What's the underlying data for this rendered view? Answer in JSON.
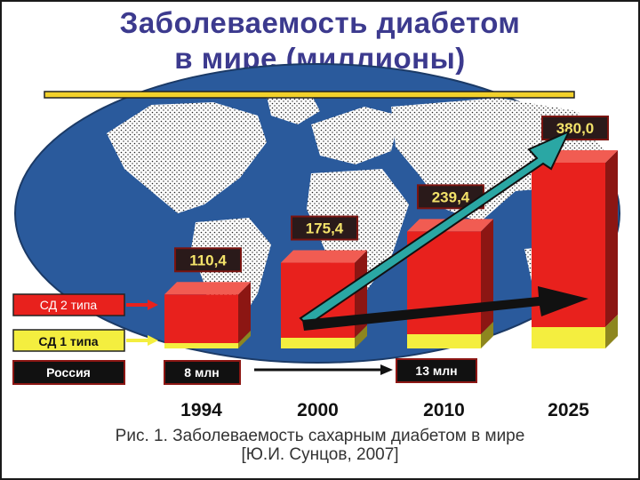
{
  "title_line1": "Заболеваемость диабетом",
  "title_line2": "в мире (миллионы)",
  "legend": {
    "type2": "СД 2 типа",
    "type1": "СД 1 типа",
    "russia": "Россия"
  },
  "russia": {
    "start_label": "8 млн",
    "end_label": "13 млн"
  },
  "caption_line1": "Рис. 1. Заболеваемость сахарным диабетом в мире",
  "caption_line2": "[Ю.И. Сунцов, 2007]",
  "colors": {
    "ocean": "#2a5a9c",
    "bar_front": "#e8211d",
    "bar_side": "#8c1613",
    "bar_top": "#f15c52",
    "yellow": "#f4ee3f",
    "yellow_side": "#8d861f",
    "label_bg": "#2a1a1a",
    "label_text": "#f3e26a",
    "arrow_teal": "#2aa7a4",
    "title": "#3c3a8e"
  },
  "chart_data": {
    "type": "bar",
    "categories": [
      "1994",
      "2000",
      "2010",
      "2025"
    ],
    "values": [
      110.4,
      175.4,
      239.4,
      380.0
    ],
    "value_labels": [
      "110,4",
      "175,4",
      "239,4",
      "380,0"
    ],
    "series": [
      {
        "name": "СД 2 типа"
      },
      {
        "name": "СД 1 типа"
      }
    ]
  }
}
